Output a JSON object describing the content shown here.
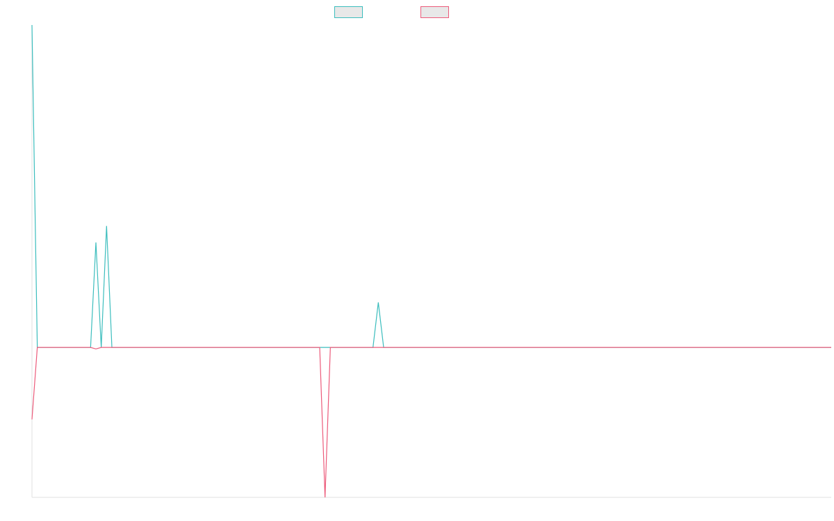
{
  "chart_data": {
    "type": "line",
    "title": "",
    "xlabel": "",
    "ylabel": "",
    "grid": false,
    "legend_position": "top",
    "legend_swatch_fill": "#e8e8e8",
    "x": [
      0,
      1,
      2,
      3,
      4,
      5,
      6,
      7,
      8,
      9,
      10,
      11,
      12,
      13,
      14,
      15,
      16,
      17,
      18,
      19,
      20,
      21,
      22,
      23,
      24,
      25,
      26,
      27,
      28,
      29,
      30,
      31,
      32,
      33,
      34,
      35,
      36,
      37,
      38,
      39,
      40,
      41,
      42,
      43,
      44,
      45,
      46,
      47,
      48,
      49,
      50,
      51,
      52,
      53,
      54,
      55,
      56,
      57,
      58,
      59,
      60,
      61,
      62,
      63,
      64,
      65,
      66,
      67,
      68,
      69,
      70,
      71,
      72,
      73,
      74,
      75,
      76,
      77,
      78,
      79,
      80,
      81,
      82,
      83,
      84,
      85,
      86,
      87,
      88,
      89,
      90,
      91,
      92,
      93,
      94,
      95,
      96,
      97,
      98,
      99,
      100,
      101,
      102,
      103,
      104,
      105,
      106,
      107,
      108,
      109,
      110,
      111,
      112,
      113,
      114,
      115,
      116,
      117,
      118,
      119,
      120,
      121,
      122,
      123,
      124,
      125,
      126,
      127,
      128,
      129,
      130,
      131,
      132,
      133,
      134,
      135,
      136,
      137,
      138,
      139,
      140,
      141,
      142,
      143,
      144,
      145,
      146,
      147,
      148,
      149,
      150
    ],
    "xlim": [
      0,
      150
    ],
    "ylim": [
      -100,
      215
    ],
    "series": [
      {
        "color": "#3bbdbd",
        "values": [
          215,
          0,
          0,
          0,
          0,
          0,
          0,
          0,
          0,
          0,
          0,
          0,
          70,
          0,
          81,
          0,
          0,
          0,
          0,
          0,
          0,
          0,
          0,
          0,
          0,
          0,
          0,
          0,
          0,
          0,
          0,
          0,
          0,
          0,
          0,
          0,
          0,
          0,
          0,
          0,
          0,
          0,
          0,
          0,
          0,
          0,
          0,
          0,
          0,
          0,
          0,
          0,
          0,
          0,
          0,
          0,
          0,
          0,
          0,
          0,
          0,
          0,
          0,
          0,
          0,
          30,
          0,
          0,
          0,
          0,
          0,
          0,
          0,
          0,
          0,
          0,
          0,
          0,
          0,
          0,
          0,
          0,
          0,
          0,
          0,
          0,
          0,
          0,
          0,
          0,
          0,
          0,
          0,
          0,
          0,
          0,
          0,
          0,
          0,
          0,
          0,
          0,
          0,
          0,
          0,
          0,
          0,
          0,
          0,
          0,
          0,
          0,
          0,
          0,
          0,
          0,
          0,
          0,
          0,
          0,
          0,
          0,
          0,
          0,
          0,
          0,
          0,
          0,
          0,
          0,
          0,
          0,
          0,
          0,
          0,
          0,
          0,
          0,
          0,
          0,
          0,
          0,
          0,
          0,
          0,
          0,
          0,
          0,
          0,
          0,
          0
        ]
      },
      {
        "color": "#ec5a7a",
        "values": [
          -48,
          0,
          0,
          0,
          0,
          0,
          0,
          0,
          0,
          0,
          0,
          0,
          -1,
          0,
          0,
          0,
          0,
          0,
          0,
          0,
          0,
          0,
          0,
          0,
          0,
          0,
          0,
          0,
          0,
          0,
          0,
          0,
          0,
          0,
          0,
          0,
          0,
          0,
          0,
          0,
          0,
          0,
          0,
          0,
          0,
          0,
          0,
          0,
          0,
          0,
          0,
          0,
          0,
          0,
          0,
          -100,
          0,
          0,
          0,
          0,
          0,
          0,
          0,
          0,
          0,
          0,
          0,
          0,
          0,
          0,
          0,
          0,
          0,
          0,
          0,
          0,
          0,
          0,
          0,
          0,
          0,
          0,
          0,
          0,
          0,
          0,
          0,
          0,
          0,
          0,
          0,
          0,
          0,
          0,
          0,
          0,
          0,
          0,
          0,
          0,
          0,
          0,
          0,
          0,
          0,
          0,
          0,
          0,
          0,
          0,
          0,
          0,
          0,
          0,
          0,
          0,
          0,
          0,
          0,
          0,
          0,
          0,
          0,
          0,
          0,
          0,
          0,
          0,
          0,
          0,
          0,
          0,
          0,
          0,
          0,
          0,
          0,
          0,
          0,
          0,
          0,
          0,
          0,
          0,
          0,
          0,
          0,
          0,
          0,
          0,
          0
        ]
      }
    ]
  }
}
